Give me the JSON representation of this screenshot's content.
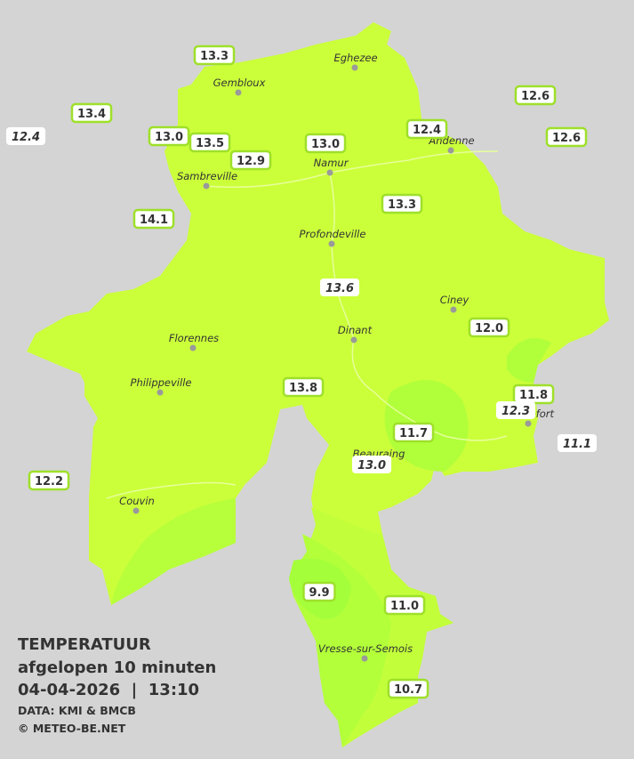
{
  "legend": {
    "title": "TEMPERATUUR",
    "subtitle": "afgelopen 10 minuten",
    "timestamp": "04-04-2026  |  13:10",
    "source": "DATA: KMI & BMCB",
    "copyright": "© METEO-BE.NET"
  },
  "cities": [
    "Eghezee",
    "Gembloux",
    "Andenne",
    "Namur",
    "Sambreville",
    "Profondeville",
    "Ciney",
    "Dinant",
    "Florennes",
    "Philippeville",
    "Rochefort",
    "Beauraing",
    "Couvin",
    "Vresse-sur-Semois"
  ],
  "stations": [
    "13.3",
    "13.4",
    "12.4",
    "13.0",
    "13.5",
    "12.9",
    "13.0",
    "12.4",
    "12.6",
    "12.6",
    "14.1",
    "13.3",
    "13.6",
    "12.0",
    "13.8",
    "11.8",
    "12.3",
    "11.7",
    "13.0",
    "11.1",
    "12.2",
    "9.9",
    "11.0",
    "10.7"
  ]
}
